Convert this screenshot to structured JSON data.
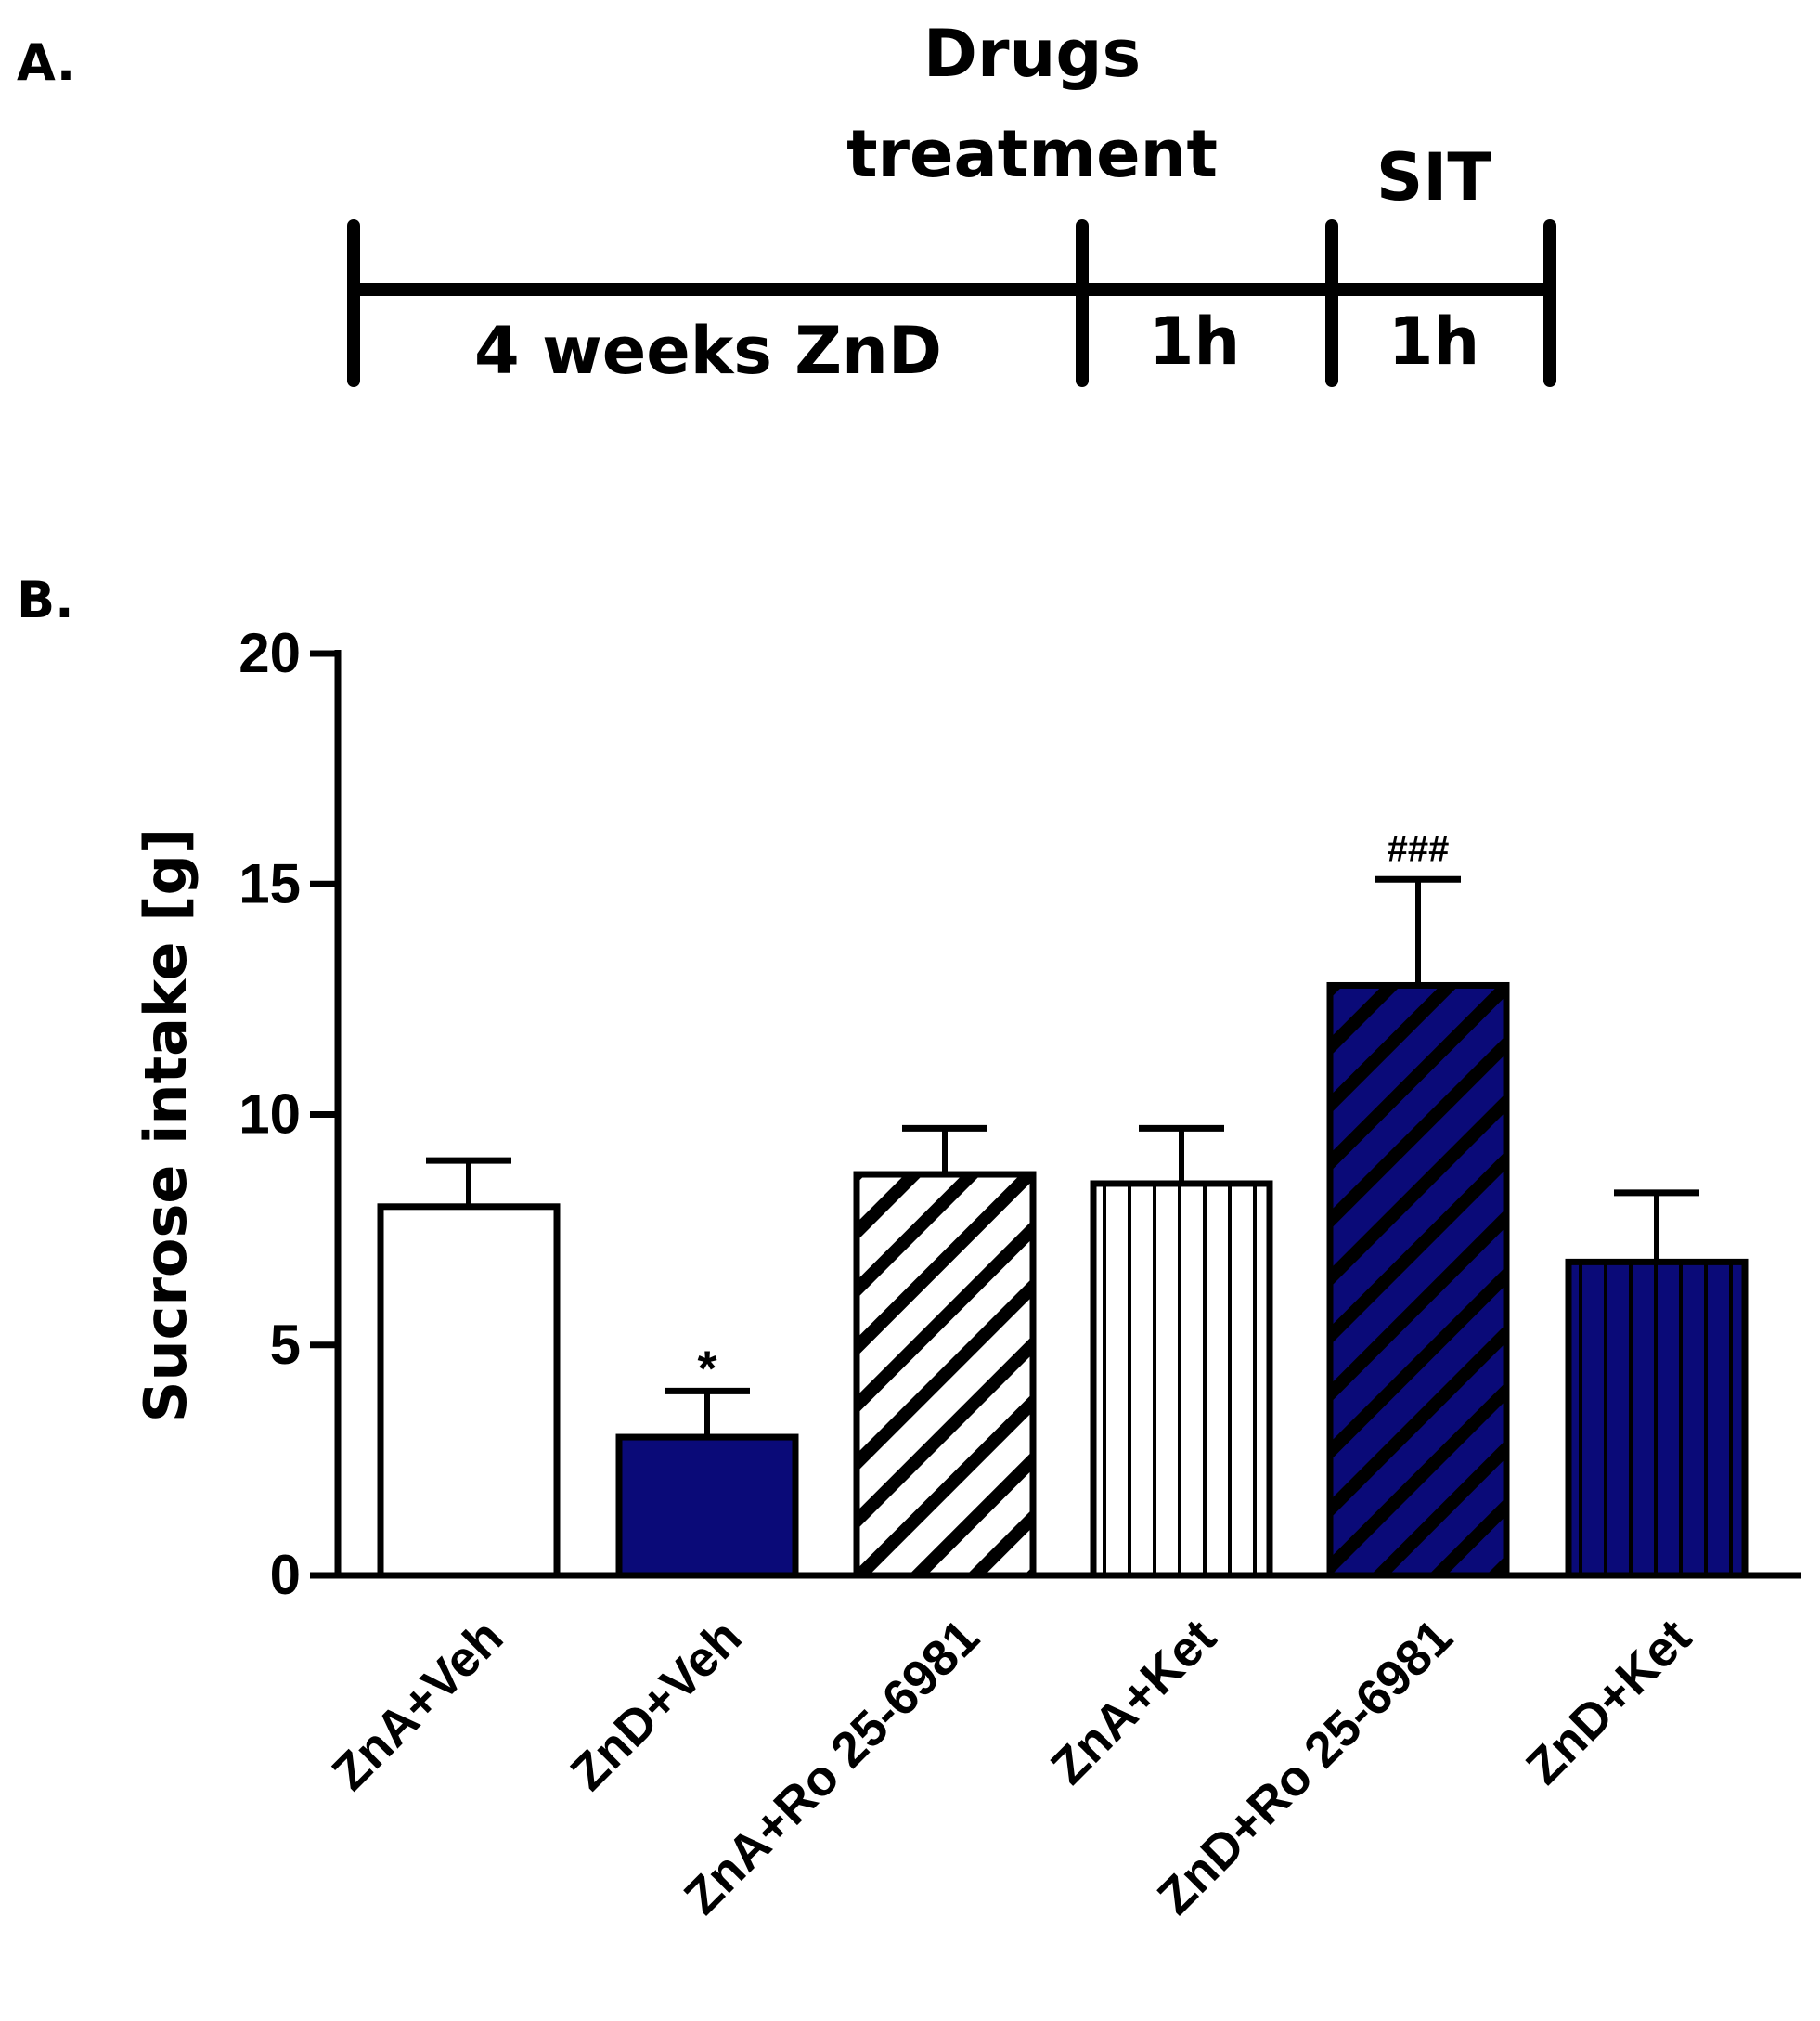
{
  "panel_a": {
    "label": "A.",
    "drug_label_line1": "Drugs",
    "drug_label_line2": "treatment",
    "sit_label": "SIT",
    "segment1": "4 weeks ZnD",
    "segment2": "1h",
    "segment3": "1h"
  },
  "panel_b": {
    "label": "B."
  },
  "colors": {
    "navy": "#0a0a78",
    "white": "#ffffff",
    "ink": "#000000"
  },
  "chart_data": {
    "type": "bar",
    "title": "",
    "xlabel": "",
    "ylabel": "Sucrose intake [g]",
    "ylim": [
      0,
      20
    ],
    "yticks": [
      0,
      5,
      10,
      15,
      20
    ],
    "categories": [
      "ZnA+Veh",
      "ZnD+Veh",
      "ZnA+Ro 25-6981",
      "ZnA+Ket",
      "ZnD+Ro 25-6981",
      "ZnD+Ket"
    ],
    "values": [
      8.0,
      3.0,
      8.7,
      8.5,
      12.8,
      6.8
    ],
    "errors": [
      1.0,
      1.0,
      1.0,
      1.2,
      2.3,
      1.5
    ],
    "fills": [
      "white",
      "navy",
      "white",
      "white",
      "navy",
      "navy"
    ],
    "patterns": [
      "solid",
      "solid",
      "diagonal",
      "vertical",
      "diagonal",
      "vertical"
    ],
    "annotations": [
      "",
      "*",
      "",
      "",
      "###",
      ""
    ]
  }
}
